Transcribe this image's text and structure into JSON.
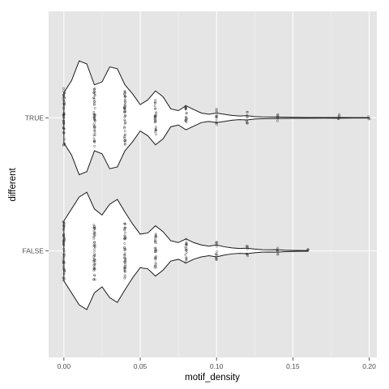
{
  "chart_data": {
    "type": "violin",
    "title": "",
    "xlabel": "motif_density",
    "ylabel": "different",
    "xlim": [
      -0.01,
      0.205
    ],
    "categories": [
      "FALSE",
      "TRUE"
    ],
    "x_ticks": [
      0.0,
      0.05,
      0.1,
      0.15,
      0.2
    ],
    "x_tick_labels": [
      "0.00",
      "0.05",
      "0.10",
      "0.15",
      "0.20"
    ],
    "grid": true,
    "panel_color": "#e5e5e5",
    "grid_color": "#ffffff",
    "point_color": "#333333",
    "series": [
      {
        "category": "TRUE",
        "x_range": [
          0.0,
          0.2
        ],
        "density": [
          [
            0.0,
            0.42
          ],
          [
            0.005,
            0.62
          ],
          [
            0.01,
            0.95
          ],
          [
            0.015,
            0.9
          ],
          [
            0.02,
            0.55
          ],
          [
            0.025,
            0.6
          ],
          [
            0.03,
            0.85
          ],
          [
            0.035,
            0.82
          ],
          [
            0.04,
            0.55
          ],
          [
            0.045,
            0.4
          ],
          [
            0.05,
            0.22
          ],
          [
            0.055,
            0.3
          ],
          [
            0.06,
            0.45
          ],
          [
            0.065,
            0.35
          ],
          [
            0.07,
            0.15
          ],
          [
            0.075,
            0.12
          ],
          [
            0.08,
            0.2
          ],
          [
            0.085,
            0.14
          ],
          [
            0.09,
            0.08
          ],
          [
            0.095,
            0.06
          ],
          [
            0.1,
            0.08
          ],
          [
            0.105,
            0.06
          ],
          [
            0.11,
            0.04
          ],
          [
            0.115,
            0.03
          ],
          [
            0.12,
            0.035
          ],
          [
            0.125,
            0.02
          ],
          [
            0.13,
            0.015
          ],
          [
            0.14,
            0.012
          ],
          [
            0.15,
            0.008
          ],
          [
            0.16,
            0.006
          ],
          [
            0.17,
            0.005
          ],
          [
            0.18,
            0.006
          ],
          [
            0.19,
            0.004
          ],
          [
            0.2,
            0.003
          ]
        ],
        "points_x": [
          0.0,
          0.02,
          0.04,
          0.06,
          0.08,
          0.1,
          0.12,
          0.14,
          0.18,
          0.2
        ],
        "points_spread": [
          0.5,
          0.5,
          0.48,
          0.3,
          0.2,
          0.15,
          0.1,
          0.07,
          0.06,
          0.03
        ]
      },
      {
        "category": "FALSE",
        "x_range": [
          0.0,
          0.16
        ],
        "density": [
          [
            0.0,
            0.5
          ],
          [
            0.005,
            0.7
          ],
          [
            0.01,
            0.9
          ],
          [
            0.015,
            0.98
          ],
          [
            0.02,
            0.7
          ],
          [
            0.025,
            0.6
          ],
          [
            0.03,
            0.78
          ],
          [
            0.035,
            0.86
          ],
          [
            0.04,
            0.65
          ],
          [
            0.045,
            0.45
          ],
          [
            0.05,
            0.28
          ],
          [
            0.055,
            0.3
          ],
          [
            0.06,
            0.42
          ],
          [
            0.065,
            0.32
          ],
          [
            0.07,
            0.17
          ],
          [
            0.075,
            0.14
          ],
          [
            0.08,
            0.2
          ],
          [
            0.085,
            0.14
          ],
          [
            0.09,
            0.1
          ],
          [
            0.095,
            0.08
          ],
          [
            0.1,
            0.1
          ],
          [
            0.105,
            0.07
          ],
          [
            0.11,
            0.05
          ],
          [
            0.115,
            0.04
          ],
          [
            0.12,
            0.045
          ],
          [
            0.125,
            0.03
          ],
          [
            0.13,
            0.02
          ],
          [
            0.135,
            0.018
          ],
          [
            0.14,
            0.02
          ],
          [
            0.145,
            0.012
          ],
          [
            0.15,
            0.008
          ],
          [
            0.155,
            0.006
          ],
          [
            0.16,
            0.005
          ]
        ],
        "points_x": [
          0.0,
          0.02,
          0.04,
          0.06,
          0.08,
          0.1,
          0.12,
          0.14,
          0.16
        ],
        "points_spread": [
          0.5,
          0.5,
          0.48,
          0.3,
          0.2,
          0.15,
          0.1,
          0.07,
          0.03
        ]
      }
    ]
  }
}
